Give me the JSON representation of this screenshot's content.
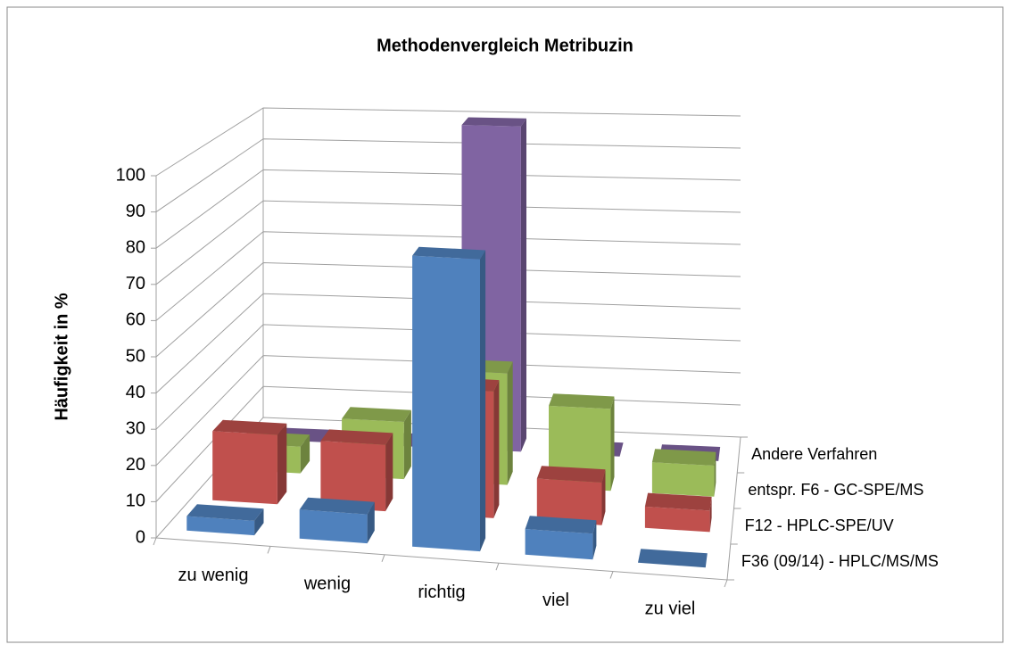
{
  "chart_data": {
    "type": "bar3d",
    "title": "Methodenvergleich Metribuzin",
    "y_label": "Häufigkeit in %",
    "categories": [
      "zu wenig",
      "wenig",
      "richtig",
      "viel",
      "zu viel"
    ],
    "series": [
      {
        "name": "F36 (09/14) - HPLC/MS/MS",
        "color": "#4f81bd",
        "values": [
          4,
          8,
          80,
          7,
          0
        ]
      },
      {
        "name": "F12 - HPLC-SPE/UV",
        "color": "#c0504d",
        "values": [
          20,
          19,
          36,
          12,
          6
        ]
      },
      {
        "name": "entspr. F6 - GC-SPE/MS",
        "color": "#9bbb59",
        "values": [
          8,
          17,
          33,
          24,
          9
        ]
      },
      {
        "name": "Andere Verfahren",
        "color": "#8064a2",
        "values": [
          0,
          0,
          100,
          0,
          0
        ]
      }
    ],
    "ylim": [
      0,
      100
    ],
    "yticks": [
      0,
      10,
      20,
      30,
      40,
      50,
      60,
      70,
      80,
      90,
      100
    ],
    "grid": true
  }
}
